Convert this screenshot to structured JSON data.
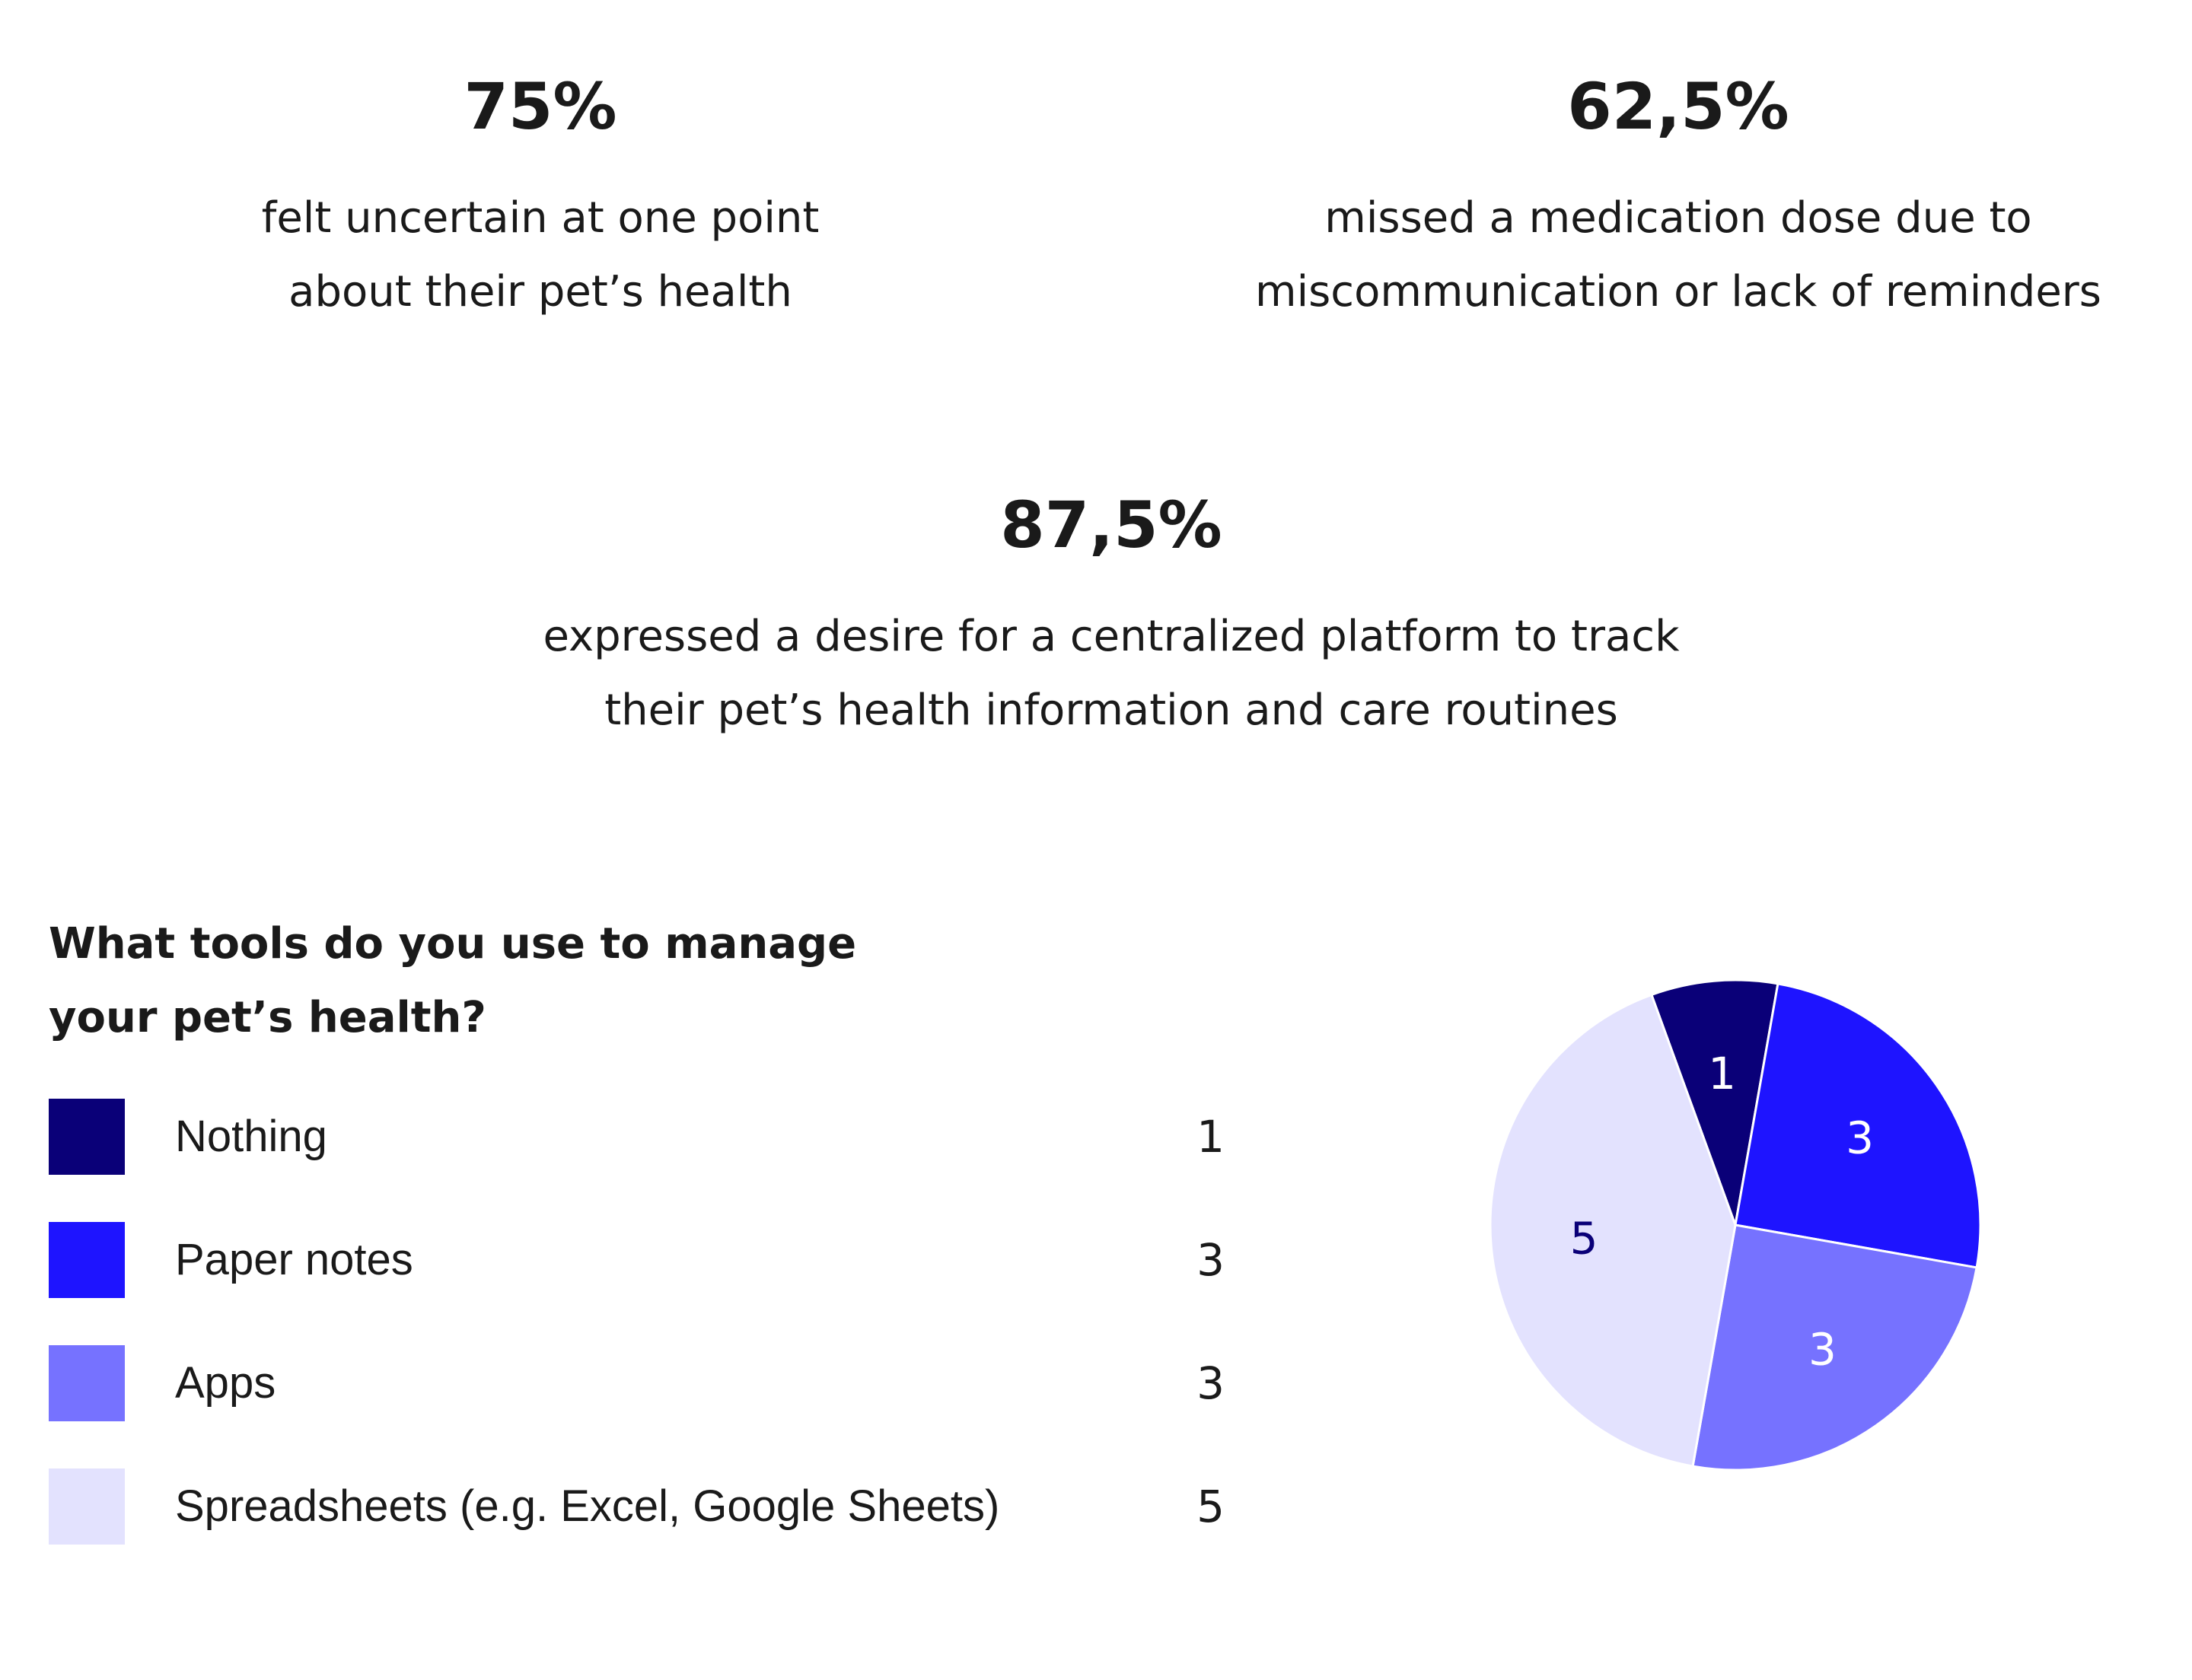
{
  "stats": [
    {
      "value": "75%",
      "line1": "felt uncertain at one point",
      "line2": "about their pet’s health"
    },
    {
      "value": "62,5%",
      "line1": "missed a medication dose due to",
      "line2": "miscommunication or lack of reminders"
    },
    {
      "value": "87,5%",
      "line1": "expressed a desire for a centralized platform to track",
      "line2": "their pet’s health information and care routines"
    }
  ],
  "legend": {
    "title_line1": "What tools do you use to manage",
    "title_line2": "your pet’s health?",
    "items": [
      {
        "label": "Nothing",
        "count": "1",
        "color": "#0a0078"
      },
      {
        "label": "Paper notes",
        "count": "3",
        "color": "#1e14ff"
      },
      {
        "label": "Apps",
        "count": "3",
        "color": "#7672ff"
      },
      {
        "label": "Spreadsheets (e.g. Excel, Google Sheets)",
        "count": "5",
        "color": "#e3e2fe"
      }
    ]
  },
  "chart_data": {
    "type": "pie",
    "title": "What tools do you use to manage your pet’s health?",
    "categories": [
      "Nothing",
      "Paper notes",
      "Apps",
      "Spreadsheets (e.g. Excel, Google Sheets)"
    ],
    "values": [
      1,
      3,
      3,
      5
    ],
    "colors": [
      "#0a0078",
      "#1e14ff",
      "#7672ff",
      "#e3e2fe"
    ],
    "label_colors": [
      "#ffffff",
      "#ffffff",
      "#ffffff",
      "#0a0078"
    ],
    "start_angle_deg": -20
  }
}
